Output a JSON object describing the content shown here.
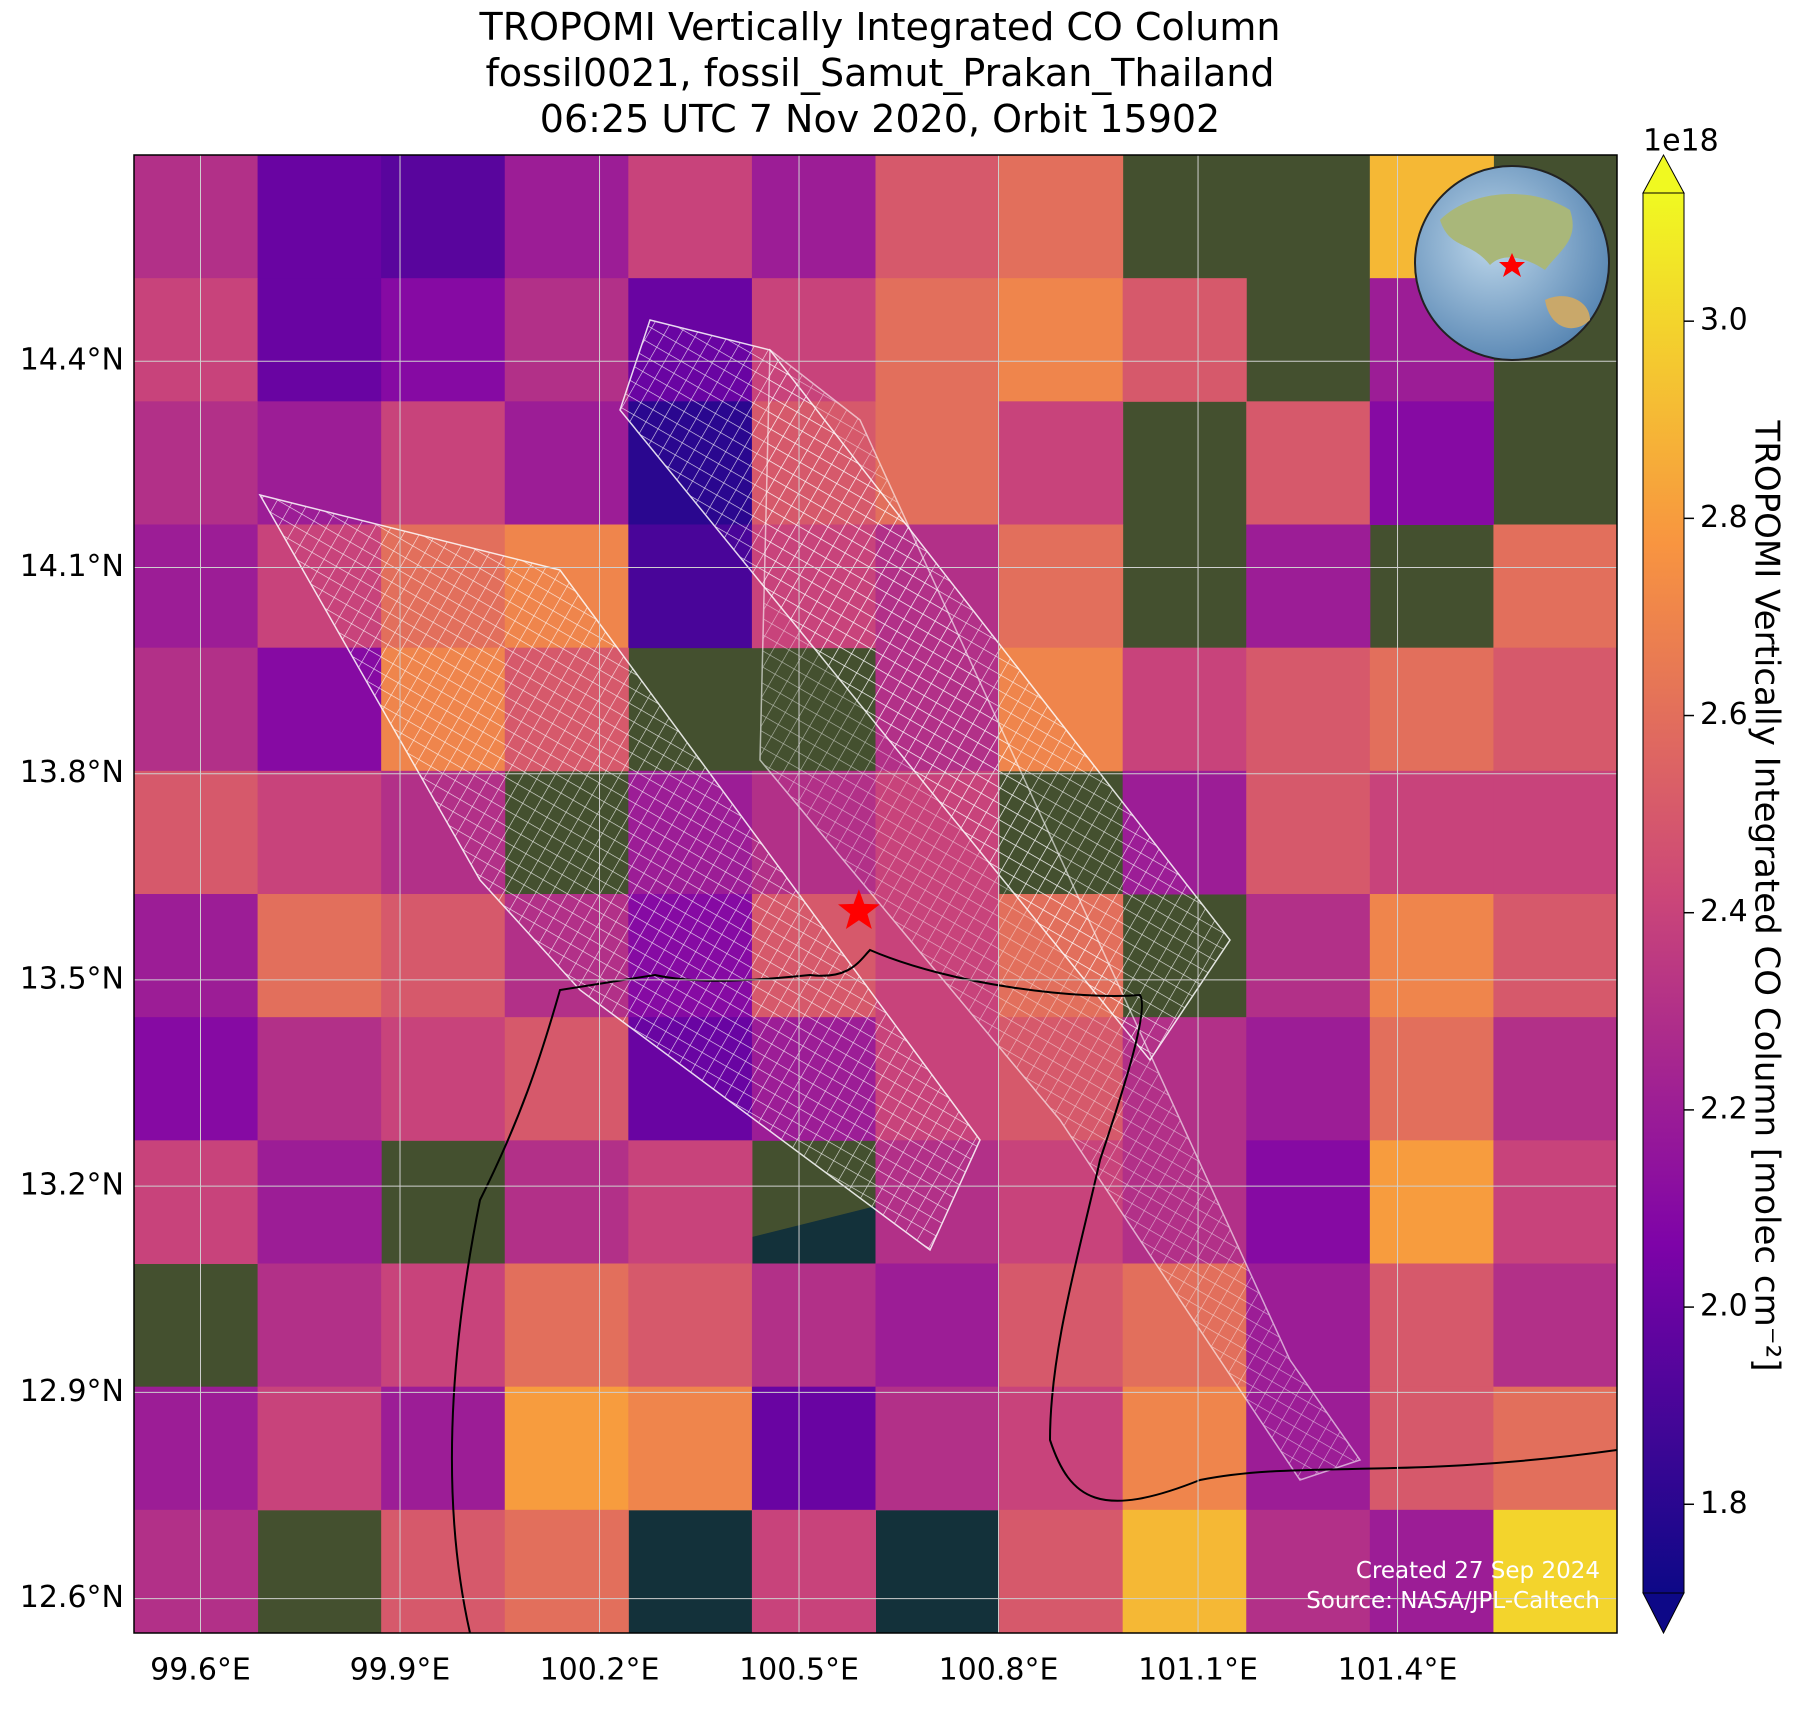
{
  "chart_data": {
    "type": "map",
    "title": [
      "TROPOMI Vertically Integrated CO Column",
      "fossil0021, fossil_Samut_Prakan_Thailand",
      "06:25 UTC 7 Nov 2020, Orbit 15902"
    ],
    "xlim": [
      99.5,
      101.73
    ],
    "ylim": [
      12.55,
      14.7
    ],
    "xticks": [
      {
        "value": 99.6,
        "label": "99.6°E"
      },
      {
        "value": 99.9,
        "label": "99.9°E"
      },
      {
        "value": 100.2,
        "label": "100.2°E"
      },
      {
        "value": 100.5,
        "label": "100.5°E"
      },
      {
        "value": 100.8,
        "label": "100.8°E"
      },
      {
        "value": 101.1,
        "label": "101.1°E"
      },
      {
        "value": 101.4,
        "label": "101.4°E"
      }
    ],
    "yticks": [
      {
        "value": 12.6,
        "label": "12.6°N"
      },
      {
        "value": 12.9,
        "label": "12.9°N"
      },
      {
        "value": 13.2,
        "label": "13.2°N"
      },
      {
        "value": 13.5,
        "label": "13.5°N"
      },
      {
        "value": 13.8,
        "label": "13.8°N"
      },
      {
        "value": 14.1,
        "label": "14.1°N"
      },
      {
        "value": 14.4,
        "label": "14.4°N"
      }
    ],
    "grid": true,
    "colormap": [
      "#0d0887",
      "#7e03a8",
      "#cc4778",
      "#f89540",
      "#f0f921"
    ],
    "clim": [
      1.71,
      3.13
    ],
    "cticks": [
      1.8,
      {
        "value": 2.0,
        "label": "2.0"
      },
      2.2,
      2.4,
      2.6,
      2.8,
      {
        "value": 3.0,
        "label": "3.0"
      }
    ],
    "colorbar_offset": "1e18",
    "colorbar_label": "TROPOMI Vertically Integrated CO Column [molec cm⁻²]",
    "site": {
      "lon": 100.59,
      "lat": 13.6
    },
    "cells": [
      [
        2.3,
        2.0,
        1.95,
        2.2,
        2.4,
        2.2,
        2.5,
        2.6,
        null,
        null,
        2.9,
        null
      ],
      [
        2.4,
        2.0,
        2.1,
        2.3,
        2.0,
        2.4,
        2.6,
        2.7,
        2.5,
        null,
        2.2,
        null
      ],
      [
        2.3,
        2.2,
        2.4,
        2.2,
        1.8,
        2.5,
        2.6,
        2.4,
        null,
        2.5,
        2.1,
        null
      ],
      [
        2.2,
        2.4,
        2.6,
        2.7,
        1.9,
        2.4,
        2.3,
        2.6,
        null,
        2.2,
        null,
        2.6
      ],
      [
        2.3,
        2.1,
        2.7,
        2.5,
        null,
        null,
        2.3,
        2.7,
        2.4,
        2.5,
        2.6,
        2.5
      ],
      [
        2.5,
        2.4,
        2.3,
        null,
        2.2,
        2.3,
        2.4,
        null,
        2.2,
        2.5,
        2.4,
        2.4
      ],
      [
        2.2,
        2.6,
        2.5,
        2.3,
        2.1,
        2.5,
        2.4,
        2.6,
        null,
        2.3,
        2.7,
        2.5
      ],
      [
        2.1,
        2.3,
        2.4,
        2.5,
        2.0,
        2.2,
        2.4,
        2.5,
        2.3,
        2.2,
        2.6,
        2.3
      ],
      [
        2.4,
        2.2,
        null,
        2.3,
        2.4,
        null,
        2.3,
        2.4,
        2.3,
        2.1,
        2.8,
        2.4
      ],
      [
        null,
        2.3,
        2.4,
        2.6,
        2.5,
        2.3,
        2.2,
        2.5,
        2.6,
        2.2,
        2.5,
        2.3
      ],
      [
        2.2,
        2.4,
        2.2,
        2.8,
        2.7,
        2.0,
        2.3,
        2.4,
        2.7,
        2.2,
        2.5,
        2.6
      ],
      [
        2.3,
        null,
        2.5,
        2.6,
        null,
        2.4,
        null,
        2.5,
        2.9,
        2.3,
        2.2,
        3.0
      ]
    ],
    "annotations": [
      "Created 27 Sep 2024",
      "Source: NASA/JPL-Caltech"
    ]
  }
}
